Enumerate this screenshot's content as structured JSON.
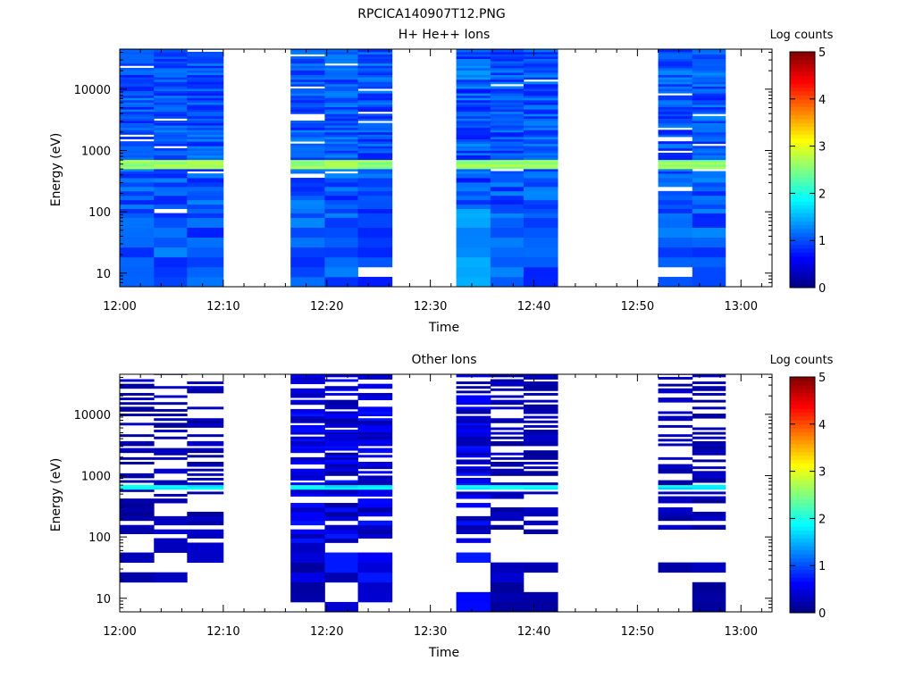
{
  "page_title": "RPCICA140907T12.PNG",
  "colormap": [
    "#000080",
    "#0000ff",
    "#0080ff",
    "#00ffff",
    "#80ff80",
    "#ffff00",
    "#ff8000",
    "#ff0000",
    "#800000"
  ],
  "chart_data": [
    {
      "type": "heatmap",
      "title": "H+ He++ Ions",
      "xlabel": "Time",
      "ylabel": "Energy (eV)",
      "yscale": "log",
      "ylim": [
        6,
        45000
      ],
      "xlim": [
        "12:00",
        "13:03"
      ],
      "x_ticks": [
        "12:00",
        "12:10",
        "12:20",
        "12:30",
        "12:40",
        "12:50",
        "13:00"
      ],
      "y_ticks": [
        "10",
        "100",
        "1000",
        "10000"
      ],
      "colorbar": {
        "label": "Log counts",
        "min": 0,
        "max": 5,
        "ticks": [
          "0",
          "1",
          "2",
          "3",
          "4",
          "5"
        ]
      },
      "columns": [
        {
          "t_start": "12:00.0",
          "t_end": "12:03.3",
          "pattern": "mid"
        },
        {
          "t_start": "12:03.3",
          "t_end": "12:06.5",
          "pattern": "mid"
        },
        {
          "t_start": "12:06.5",
          "t_end": "12:10.0",
          "pattern": "mid"
        },
        {
          "t_start": "12:16.5",
          "t_end": "12:19.8",
          "pattern": "mid"
        },
        {
          "t_start": "12:19.8",
          "t_end": "12:23.0",
          "pattern": "mid"
        },
        {
          "t_start": "12:23.0",
          "t_end": "12:26.3",
          "pattern": "mid"
        },
        {
          "t_start": "12:32.5",
          "t_end": "12:35.8",
          "pattern": "high"
        },
        {
          "t_start": "12:35.8",
          "t_end": "12:39.0",
          "pattern": "mid"
        },
        {
          "t_start": "12:39.0",
          "t_end": "12:42.3",
          "pattern": "mid"
        },
        {
          "t_start": "12:52.0",
          "t_end": "12:55.3",
          "pattern": "mid"
        },
        {
          "t_start": "12:55.3",
          "t_end": "12:58.5",
          "pattern": "mid"
        }
      ],
      "peak_band": {
        "energy_min_ev": 500,
        "energy_max_ev": 720,
        "log_counts": 2.6
      }
    },
    {
      "type": "heatmap",
      "title": "Other Ions",
      "xlabel": "Time",
      "ylabel": "Energy (eV)",
      "yscale": "log",
      "ylim": [
        6,
        45000
      ],
      "xlim": [
        "12:00",
        "13:03"
      ],
      "x_ticks": [
        "12:00",
        "12:10",
        "12:20",
        "12:30",
        "12:40",
        "12:50",
        "13:00"
      ],
      "y_ticks": [
        "10",
        "100",
        "1000",
        "10000"
      ],
      "colorbar": {
        "label": "Log counts",
        "min": 0,
        "max": 5,
        "ticks": [
          "0",
          "1",
          "2",
          "3",
          "4",
          "5"
        ]
      },
      "columns": [
        {
          "t_start": "12:00.0",
          "t_end": "12:03.3",
          "pattern": "sparse"
        },
        {
          "t_start": "12:03.3",
          "t_end": "12:06.5",
          "pattern": "sparse"
        },
        {
          "t_start": "12:06.5",
          "t_end": "12:10.0",
          "pattern": "sparse"
        },
        {
          "t_start": "12:16.5",
          "t_end": "12:19.8",
          "pattern": "dense"
        },
        {
          "t_start": "12:19.8",
          "t_end": "12:23.0",
          "pattern": "dense"
        },
        {
          "t_start": "12:23.0",
          "t_end": "12:26.3",
          "pattern": "dense"
        },
        {
          "t_start": "12:32.5",
          "t_end": "12:35.8",
          "pattern": "dense"
        },
        {
          "t_start": "12:35.8",
          "t_end": "12:39.0",
          "pattern": "sparse"
        },
        {
          "t_start": "12:39.0",
          "t_end": "12:42.3",
          "pattern": "sparse"
        },
        {
          "t_start": "12:52.0",
          "t_end": "12:55.3",
          "pattern": "sparse"
        },
        {
          "t_start": "12:55.3",
          "t_end": "12:58.5",
          "pattern": "sparse"
        }
      ],
      "peak_band": {
        "energy_min_ev": 580,
        "energy_max_ev": 720,
        "log_counts": 1.8
      }
    }
  ]
}
